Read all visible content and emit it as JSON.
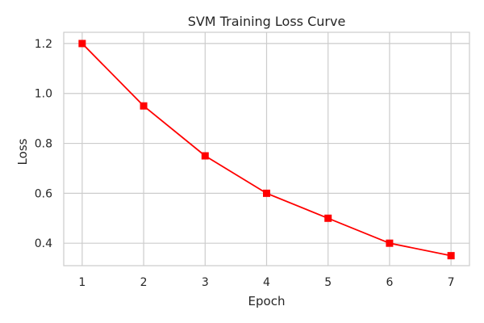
{
  "chart_data": {
    "type": "line",
    "title": "SVM Training Loss Curve",
    "xlabel": "Epoch",
    "ylabel": "Loss",
    "x": [
      1,
      2,
      3,
      4,
      5,
      6,
      7
    ],
    "series": [
      {
        "values": [
          1.2,
          0.95,
          0.75,
          0.6,
          0.5,
          0.4,
          0.35
        ],
        "color": "#ff0000",
        "marker": "square"
      }
    ],
    "x_ticks": [
      "1",
      "2",
      "3",
      "4",
      "5",
      "6",
      "7"
    ],
    "y_ticks": [
      "0.4",
      "0.6",
      "0.8",
      "1.0",
      "1.2"
    ],
    "xlim": [
      0.7,
      7.3
    ],
    "ylim": [
      0.31,
      1.245
    ],
    "grid": true,
    "colors": {
      "grid": "#cccccc",
      "frame": "#cccccc",
      "text": "#262626"
    }
  }
}
